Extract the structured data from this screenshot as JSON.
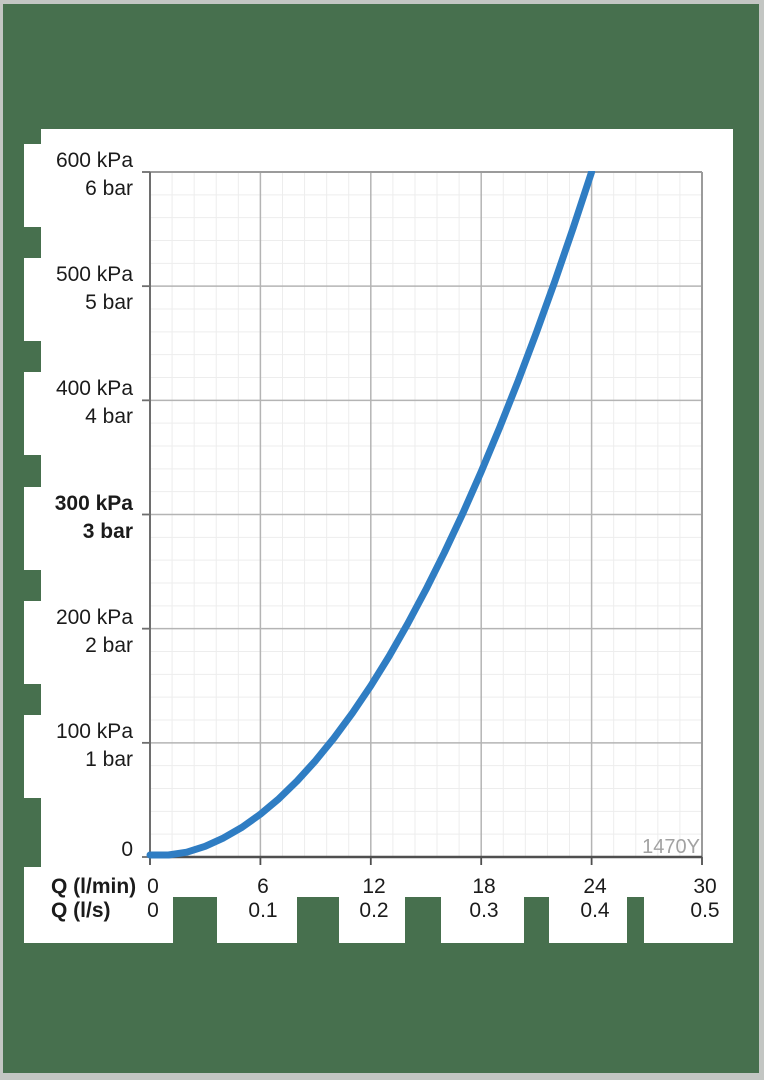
{
  "page": {
    "background_color": "#47704e",
    "border_color": "#c3c6c3",
    "panel_color": "#ffffff"
  },
  "watermark": {
    "text": "1470Y",
    "color": "#a2a2a2"
  },
  "y_axis": {
    "unit_primary": "kPa",
    "unit_secondary": "bar",
    "labels": [
      {
        "kpa": "600 kPa",
        "bar": "6 bar",
        "value_kpa": 600,
        "bold": false
      },
      {
        "kpa": "500 kPa",
        "bar": "5 bar",
        "value_kpa": 500,
        "bold": false
      },
      {
        "kpa": "400 kPa",
        "bar": "4 bar",
        "value_kpa": 400,
        "bold": false
      },
      {
        "kpa": "300 kPa",
        "bar": "3 bar",
        "value_kpa": 300,
        "bold": true
      },
      {
        "kpa": "200 kPa",
        "bar": "2 bar",
        "value_kpa": 200,
        "bold": false
      },
      {
        "kpa": "100 kPa",
        "bar": "1 bar",
        "value_kpa": 100,
        "bold": false
      }
    ],
    "zero_label": "0"
  },
  "x_axis": {
    "row1_title": "Q (l/min)",
    "row2_title": "Q (l/s)",
    "row1_values": [
      "0",
      "6",
      "12",
      "18",
      "24",
      "30"
    ],
    "row2_values": [
      "0",
      "0.1",
      "0.2",
      "0.3",
      "0.4",
      "0.5"
    ],
    "tick_positions_lmin": [
      0,
      6,
      12,
      18,
      24,
      30
    ]
  },
  "chart_data": {
    "type": "line",
    "title": "",
    "annotation": "1470Y",
    "x_axis": {
      "label_primary": "Q (l/min)",
      "label_secondary": "Q (l/s)",
      "range_lmin": [
        0,
        30
      ],
      "range_ls": [
        0,
        0.5
      ],
      "ticks_lmin": [
        0,
        6,
        12,
        18,
        24,
        30
      ],
      "ticks_ls": [
        0,
        0.1,
        0.2,
        0.3,
        0.4,
        0.5
      ]
    },
    "y_axis": {
      "ticks_kpa": [
        0,
        100,
        200,
        300,
        400,
        500,
        600
      ],
      "ticks_bar": [
        0,
        1,
        2,
        3,
        4,
        5,
        6
      ],
      "range_kpa": [
        0,
        600
      ],
      "highlighted_tick_kpa": 300
    },
    "grid": {
      "minor_step_lmin": 1.2,
      "minor_step_kpa": 20,
      "major_step_lmin": 6,
      "major_step_kpa": 100
    },
    "legend": "none",
    "series": [
      {
        "name": "pressure-drop-curve",
        "color": "#2f7dc3",
        "points_lmin_kpa": [
          [
            0,
            0
          ],
          [
            1,
            1.0
          ],
          [
            2,
            4.2
          ],
          [
            3,
            9.4
          ],
          [
            4,
            16.7
          ],
          [
            5,
            26.0
          ],
          [
            6,
            37.5
          ],
          [
            7,
            51.0
          ],
          [
            8,
            66.7
          ],
          [
            9,
            84.4
          ],
          [
            10,
            104.2
          ],
          [
            11,
            126.0
          ],
          [
            12,
            150.0
          ],
          [
            13,
            176.0
          ],
          [
            14,
            204.2
          ],
          [
            15,
            234.4
          ],
          [
            16,
            266.7
          ],
          [
            17,
            301.0
          ],
          [
            18,
            337.5
          ],
          [
            19,
            376.0
          ],
          [
            20,
            416.7
          ],
          [
            21,
            459.4
          ],
          [
            22,
            504.2
          ],
          [
            23,
            551.0
          ],
          [
            24,
            600.0
          ]
        ]
      }
    ],
    "colors": {
      "grid_minor": "#ededed",
      "grid_major": "#b4b4b4",
      "frame_light": "#9b9b9b",
      "frame_left": "#6e6e6e",
      "frame_bottom": "#4f4f4f",
      "curve": "#2f7dc3",
      "watermark": "#a2a2a2"
    }
  }
}
